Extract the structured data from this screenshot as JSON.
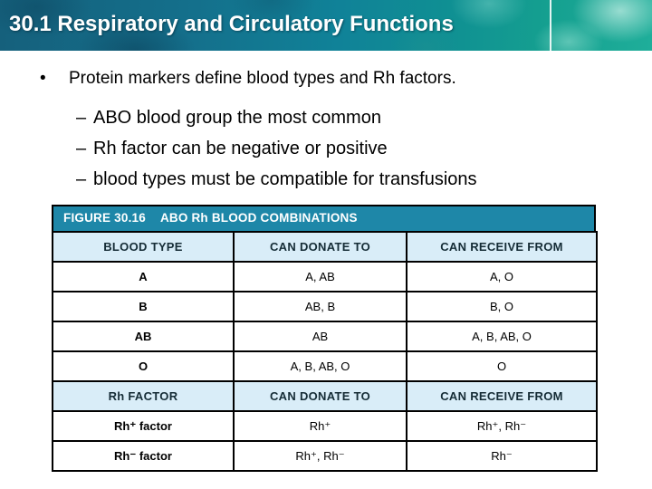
{
  "header": {
    "title": "30.1 Respiratory and Circulatory Functions"
  },
  "bullets": {
    "marker": "•",
    "dash": "–",
    "main": "Protein markers define blood types and Rh factors.",
    "subs": [
      "ABO blood group the most common",
      "Rh factor can be negative or positive",
      "blood types must be compatible for transfusions"
    ]
  },
  "table": {
    "figure_label": "FIGURE 30.16",
    "figure_title": "ABO Rh BLOOD COMBINATIONS",
    "abo": {
      "headers": [
        "BLOOD TYPE",
        "CAN DONATE TO",
        "CAN RECEIVE FROM"
      ],
      "rows": [
        [
          "A",
          "A, AB",
          "A, O"
        ],
        [
          "B",
          "AB, B",
          "B, O"
        ],
        [
          "AB",
          "AB",
          "A, B, AB, O"
        ],
        [
          "O",
          "A, B, AB, O",
          "O"
        ]
      ]
    },
    "rh": {
      "headers": [
        "Rh FACTOR",
        "CAN DONATE TO",
        "CAN RECEIVE FROM"
      ],
      "rows": [
        [
          "Rh⁺ factor",
          "Rh⁺",
          "Rh⁺, Rh⁻"
        ],
        [
          "Rh⁻ factor",
          "Rh⁺, Rh⁻",
          "Rh⁻"
        ]
      ]
    }
  },
  "colors": {
    "table_title_bg": "#1e87a8",
    "table_header_bg": "#d9edf8",
    "table_border": "#000000",
    "band_teal_left": "#15607c",
    "band_teal_right": "#1fae9a",
    "title_text": "#ffffff",
    "body_text": "#000000"
  }
}
